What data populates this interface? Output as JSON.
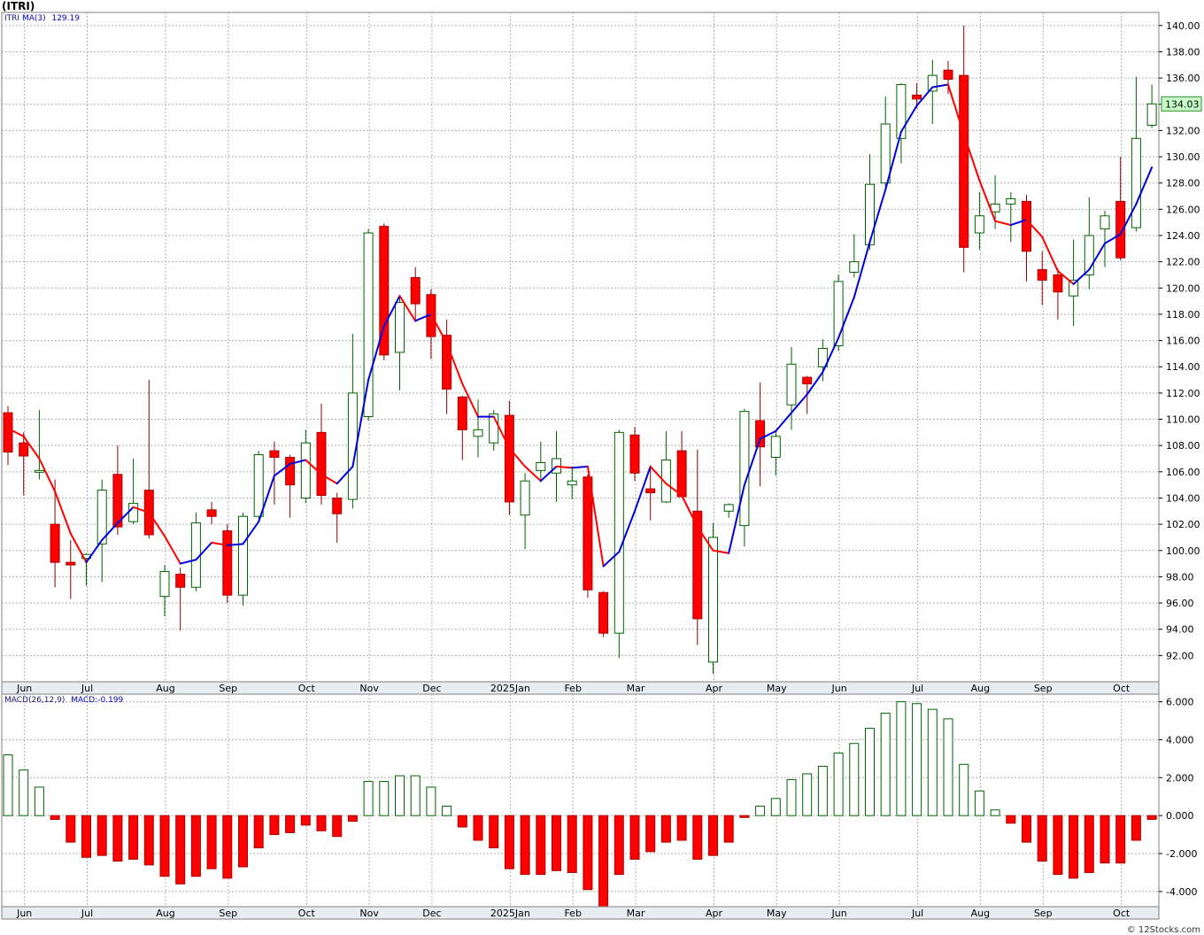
{
  "title": "(ITRI)",
  "legend_price": {
    "symbol": "ITRI",
    "ma_label": "MA(3)",
    "ma_value": "129.19"
  },
  "legend_macd": {
    "label": "MACD(26,12,9)",
    "value_label": "MACD:-0.199"
  },
  "last_price_label": "134.03",
  "footer": "© 12Stocks.com",
  "colors": {
    "up": "#006400",
    "down": "#ff0000",
    "ma_up": "#0000dd",
    "ma_down": "#ff0000",
    "grid": "#b0b0b0",
    "axis_bg": "#e8edf2"
  },
  "chart_data": [
    {
      "type": "candlestick",
      "ticker": "ITRI",
      "frequency": "weekly",
      "ylim": [
        90,
        141
      ],
      "y_ticks": [
        "140.00",
        "138.00",
        "136.00",
        "134.00",
        "132.00",
        "130.00",
        "128.00",
        "126.00",
        "124.00",
        "122.00",
        "120.00",
        "118.00",
        "116.00",
        "114.00",
        "112.00",
        "110.00",
        "108.00",
        "106.00",
        "104.00",
        "102.00",
        "100.00",
        "98.00",
        "96.00",
        "94.00",
        "92.00"
      ],
      "x_labels": [
        {
          "label": "Jun",
          "index": 1
        },
        {
          "label": "Jul",
          "index": 5
        },
        {
          "label": "Aug",
          "index": 10
        },
        {
          "label": "Sep",
          "index": 14
        },
        {
          "label": "Oct",
          "index": 19
        },
        {
          "label": "Nov",
          "index": 23
        },
        {
          "label": "Dec",
          "index": 27
        },
        {
          "label": "2025Jan",
          "index": 32
        },
        {
          "label": "Feb",
          "index": 36
        },
        {
          "label": "Mar",
          "index": 40
        },
        {
          "label": "Apr",
          "index": 45
        },
        {
          "label": "May",
          "index": 49
        },
        {
          "label": "Jun",
          "index": 53
        },
        {
          "label": "Jul",
          "index": 58
        },
        {
          "label": "Aug",
          "index": 62
        },
        {
          "label": "Sep",
          "index": 66
        },
        {
          "label": "Oct",
          "index": 71
        }
      ],
      "candles": [
        {
          "o": 110.5,
          "h": 111,
          "l": 106.5,
          "c": 107.5
        },
        {
          "o": 108.2,
          "h": 109,
          "l": 104.2,
          "c": 107.2
        },
        {
          "o": 106,
          "h": 110.7,
          "l": 105.4,
          "c": 106.1
        },
        {
          "o": 102,
          "h": 105.4,
          "l": 97.2,
          "c": 99.1
        },
        {
          "o": 99.1,
          "h": 100.8,
          "l": 96.3,
          "c": 98.9
        },
        {
          "o": 99.4,
          "h": 99.8,
          "l": 97.3,
          "c": 99.7
        },
        {
          "o": 100.5,
          "h": 105.4,
          "l": 97.6,
          "c": 104.6
        },
        {
          "o": 105.8,
          "h": 108,
          "l": 101.2,
          "c": 101.8
        },
        {
          "o": 102.2,
          "h": 107,
          "l": 102,
          "c": 103.6
        },
        {
          "o": 104.6,
          "h": 113,
          "l": 100.9,
          "c": 101.2
        },
        {
          "o": 96.5,
          "h": 98.9,
          "l": 95,
          "c": 98.4
        },
        {
          "o": 98.2,
          "h": 98.7,
          "l": 93.9,
          "c": 97.2
        },
        {
          "o": 97.2,
          "h": 102.9,
          "l": 96.9,
          "c": 102.1
        },
        {
          "o": 103.1,
          "h": 103.7,
          "l": 102,
          "c": 102.6
        },
        {
          "o": 101.5,
          "h": 102,
          "l": 96,
          "c": 96.6
        },
        {
          "o": 96.6,
          "h": 102.9,
          "l": 95.8,
          "c": 102.6
        },
        {
          "o": 102.6,
          "h": 107.6,
          "l": 102.4,
          "c": 107.3
        },
        {
          "o": 107.6,
          "h": 108.3,
          "l": 103.5,
          "c": 107.1
        },
        {
          "o": 107.1,
          "h": 107.3,
          "l": 102.5,
          "c": 105
        },
        {
          "o": 104,
          "h": 109.2,
          "l": 103.6,
          "c": 108.2
        },
        {
          "o": 109,
          "h": 111.2,
          "l": 103.5,
          "c": 104.2
        },
        {
          "o": 104,
          "h": 104.4,
          "l": 100.6,
          "c": 102.8
        },
        {
          "o": 103.9,
          "h": 116.5,
          "l": 103.2,
          "c": 112
        },
        {
          "o": 110.2,
          "h": 124.5,
          "l": 109.9,
          "c": 124.2
        },
        {
          "o": 124.7,
          "h": 124.9,
          "l": 114.5,
          "c": 114.9
        },
        {
          "o": 115.1,
          "h": 119.4,
          "l": 112.2,
          "c": 118.9
        },
        {
          "o": 120.8,
          "h": 121.6,
          "l": 117.4,
          "c": 118.8
        },
        {
          "o": 119.5,
          "h": 119.9,
          "l": 114.6,
          "c": 116.3
        },
        {
          "o": 116.4,
          "h": 117.6,
          "l": 110.4,
          "c": 112.3
        },
        {
          "o": 111.7,
          "h": 111.8,
          "l": 106.9,
          "c": 109.2
        },
        {
          "o": 108.7,
          "h": 111.5,
          "l": 107.1,
          "c": 109.2
        },
        {
          "o": 108.2,
          "h": 110.7,
          "l": 107.6,
          "c": 110.4
        },
        {
          "o": 110.3,
          "h": 111.4,
          "l": 102.7,
          "c": 103.7
        },
        {
          "o": 102.7,
          "h": 105.9,
          "l": 100.1,
          "c": 105.3
        },
        {
          "o": 106.1,
          "h": 108.3,
          "l": 105.2,
          "c": 106.7
        },
        {
          "o": 105.9,
          "h": 109.1,
          "l": 103.7,
          "c": 107
        },
        {
          "o": 105,
          "h": 106.4,
          "l": 103.9,
          "c": 105.3
        },
        {
          "o": 105.6,
          "h": 105.8,
          "l": 96.4,
          "c": 97
        },
        {
          "o": 96.8,
          "h": 96.9,
          "l": 93.4,
          "c": 93.7
        },
        {
          "o": 93.7,
          "h": 109.2,
          "l": 91.8,
          "c": 109
        },
        {
          "o": 108.8,
          "h": 109.4,
          "l": 105.3,
          "c": 105.9
        },
        {
          "o": 104.7,
          "h": 106.5,
          "l": 102.3,
          "c": 104.4
        },
        {
          "o": 103.7,
          "h": 109.1,
          "l": 103.6,
          "c": 106.9
        },
        {
          "o": 107.6,
          "h": 109.1,
          "l": 104.1,
          "c": 104.1
        },
        {
          "o": 103,
          "h": 107.7,
          "l": 92.8,
          "c": 94.8
        },
        {
          "o": 91.5,
          "h": 102.1,
          "l": 90.6,
          "c": 101
        },
        {
          "o": 103,
          "h": 103.6,
          "l": 102.5,
          "c": 103.5
        },
        {
          "o": 101.9,
          "h": 110.8,
          "l": 100.3,
          "c": 110.6
        },
        {
          "o": 109.9,
          "h": 112.8,
          "l": 104.9,
          "c": 107.9
        },
        {
          "o": 107.1,
          "h": 109.2,
          "l": 105.7,
          "c": 108.7
        },
        {
          "o": 111.1,
          "h": 115.5,
          "l": 109.2,
          "c": 114.2
        },
        {
          "o": 113.2,
          "h": 113.3,
          "l": 110.4,
          "c": 112.7
        },
        {
          "o": 114,
          "h": 116.1,
          "l": 112.9,
          "c": 115.4
        },
        {
          "o": 115.6,
          "h": 121,
          "l": 115.2,
          "c": 120.5
        },
        {
          "o": 121.2,
          "h": 124.1,
          "l": 120.8,
          "c": 122
        },
        {
          "o": 123.3,
          "h": 130.2,
          "l": 122.9,
          "c": 127.9
        },
        {
          "o": 128,
          "h": 134.6,
          "l": 127.7,
          "c": 132.5
        },
        {
          "o": 131.4,
          "h": 135.6,
          "l": 129.5,
          "c": 135.5
        },
        {
          "o": 134.7,
          "h": 135.6,
          "l": 133.7,
          "c": 134.4
        },
        {
          "o": 135,
          "h": 137.4,
          "l": 132.5,
          "c": 136.2
        },
        {
          "o": 136.6,
          "h": 137.3,
          "l": 134.8,
          "c": 135.9
        },
        {
          "o": 136.2,
          "h": 140,
          "l": 121.2,
          "c": 123.1
        },
        {
          "o": 124.2,
          "h": 127.3,
          "l": 122.9,
          "c": 125.5
        },
        {
          "o": 125.8,
          "h": 128.6,
          "l": 124.5,
          "c": 126.4
        },
        {
          "o": 126.4,
          "h": 127.3,
          "l": 123.5,
          "c": 126.8
        },
        {
          "o": 126.6,
          "h": 127.1,
          "l": 120.5,
          "c": 122.8
        },
        {
          "o": 121.4,
          "h": 122.8,
          "l": 118.7,
          "c": 120.6
        },
        {
          "o": 121,
          "h": 121.5,
          "l": 117.6,
          "c": 119.7
        },
        {
          "o": 119.4,
          "h": 123.7,
          "l": 117.1,
          "c": 120.6
        },
        {
          "o": 121,
          "h": 126.9,
          "l": 119.9,
          "c": 124
        },
        {
          "o": 124.5,
          "h": 125.9,
          "l": 121.6,
          "c": 125.5
        },
        {
          "o": 126.6,
          "h": 130,
          "l": 122.1,
          "c": 122.3
        },
        {
          "o": 124.6,
          "h": 136.1,
          "l": 124.3,
          "c": 131.4
        },
        {
          "o": 132.4,
          "h": 135.5,
          "l": 132.2,
          "c": 134.03
        }
      ],
      "ma3": [
        109.3,
        108.7,
        107,
        104.5,
        101.3,
        99.1,
        100.8,
        102.1,
        103.3,
        102.9,
        101.1,
        99,
        99.3,
        100.6,
        100.4,
        100.5,
        102.2,
        105.7,
        106.6,
        106.9,
        105.8,
        105.1,
        106.4,
        113,
        117.1,
        119.4,
        117.5,
        118,
        115.8,
        112.7,
        110.2,
        110.2,
        107.8,
        106.4,
        105.3,
        106.4,
        106.3,
        106.4,
        98.8,
        99.9,
        103,
        106.4,
        105.1,
        104.2,
        101.8,
        100,
        99.8,
        105,
        108.5,
        109.1,
        110.5,
        111.9,
        113.6,
        116.2,
        119.3,
        123.5,
        127.5,
        131.9,
        133.9,
        135.3,
        135.5,
        131.7,
        128.2,
        125.1,
        124.8,
        125.2,
        123.9,
        121.3,
        120.3,
        121.4,
        123.4,
        124.1,
        126.4,
        129.19
      ],
      "macd_ylim": [
        -4.8,
        6.4
      ],
      "macd_ticks": [
        "6.000",
        "4.000",
        "2.000",
        "0.000",
        "-2.000",
        "-4.000"
      ],
      "macd": [
        3.2,
        2.4,
        1.5,
        -0.2,
        -1.4,
        -2.2,
        -2.1,
        -2.4,
        -2.3,
        -2.6,
        -3.2,
        -3.6,
        -3.2,
        -2.8,
        -3.3,
        -2.7,
        -1.7,
        -1,
        -0.9,
        -0.5,
        -0.8,
        -1.1,
        -0.3,
        1.8,
        1.8,
        2.1,
        2.1,
        1.5,
        0.5,
        -0.6,
        -1.3,
        -1.7,
        -2.8,
        -3.1,
        -3.1,
        -2.9,
        -3,
        -3.9,
        -4.8,
        -3.1,
        -2.3,
        -1.9,
        -1.4,
        -1.3,
        -2.3,
        -2.1,
        -1.4,
        -0.1,
        0.5,
        0.9,
        1.9,
        2.2,
        2.6,
        3.3,
        3.8,
        4.6,
        5.4,
        6,
        5.9,
        5.6,
        5.1,
        2.7,
        1.3,
        0.3,
        -0.4,
        -1.4,
        -2.4,
        -3.1,
        -3.3,
        -3,
        -2.5,
        -2.5,
        -1.3,
        -0.199
      ]
    }
  ]
}
